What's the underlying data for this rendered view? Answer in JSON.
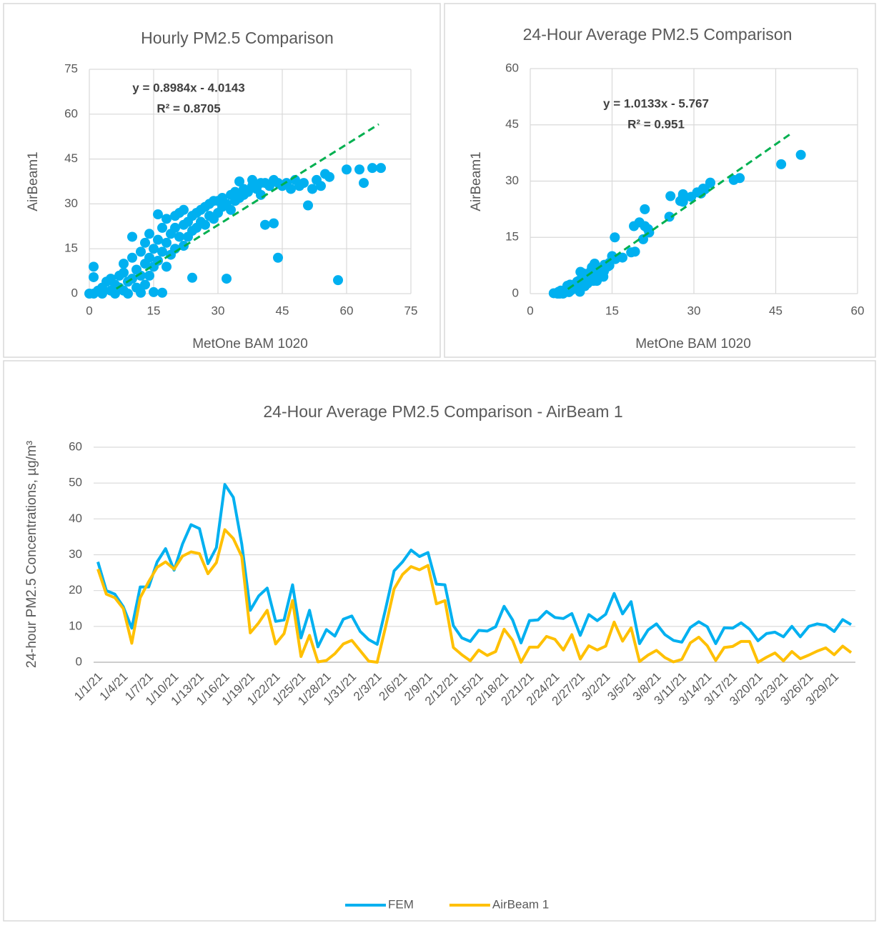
{
  "chart_data": [
    {
      "type": "scatter",
      "title": "Hourly PM2.5 Comparison",
      "x_label": "MetOne BAM 1020",
      "y_label": "AirBeam1",
      "color": "#00b0f0",
      "trend_color": "#00b050",
      "equation": "y = 0.8984x - 4.0143",
      "r_squared": "R² = 0.8705",
      "x": [
        0,
        1,
        1,
        1,
        2,
        3,
        3,
        4,
        5,
        5,
        6,
        6,
        7,
        7,
        8,
        8,
        8,
        9,
        9,
        10,
        10,
        10,
        11,
        11,
        12,
        12,
        12,
        13,
        13,
        13,
        14,
        14,
        14,
        15,
        15,
        15,
        16,
        16,
        16,
        17,
        17,
        17,
        18,
        18,
        18,
        19,
        19,
        20,
        20,
        20,
        21,
        21,
        22,
        22,
        22,
        23,
        23,
        24,
        24,
        24,
        25,
        25,
        26,
        26,
        27,
        27,
        28,
        28,
        29,
        29,
        30,
        30,
        31,
        31,
        32,
        32,
        33,
        33,
        34,
        34,
        35,
        35,
        36,
        36,
        37,
        38,
        38,
        39,
        40,
        40,
        41,
        41,
        42,
        43,
        43,
        44,
        44,
        45,
        46,
        47,
        48,
        49,
        50,
        51,
        52,
        53,
        54,
        55,
        56,
        58,
        60,
        63,
        64,
        66,
        68
      ],
      "values": [
        0,
        0,
        9,
        5.5,
        1,
        2,
        0,
        4,
        1,
        5,
        3,
        0,
        6,
        2,
        7,
        1,
        10,
        4,
        0,
        12,
        5,
        19,
        8,
        2,
        14,
        6,
        0.3,
        10,
        17,
        3,
        12,
        20,
        6,
        15,
        0.5,
        9,
        18,
        26.5,
        11,
        14,
        22,
        0.3,
        17,
        25,
        9,
        20,
        13,
        22,
        26,
        15,
        19,
        27,
        23,
        16,
        28,
        24,
        19,
        26,
        5.3,
        21,
        27,
        22,
        28,
        24,
        29,
        23,
        30,
        26,
        31,
        25,
        31,
        27,
        32,
        29,
        5,
        30,
        33,
        28,
        31,
        34,
        37.5,
        32,
        33,
        35,
        34,
        36,
        38,
        35,
        37,
        33,
        23,
        37,
        36,
        23.5,
        38,
        12,
        37,
        36,
        37,
        35,
        38,
        36,
        37,
        29.5,
        35,
        38,
        36,
        40,
        39,
        4.5,
        41.5,
        41.5,
        37,
        42,
        42
      ],
      "trendline": {
        "x": [
          6.3,
          67.5
        ],
        "y": [
          1.65,
          56.63
        ]
      },
      "xlim": [
        0,
        75
      ],
      "ylim": [
        0,
        75
      ],
      "xticks": [
        0,
        15,
        30,
        45,
        60,
        75
      ],
      "yticks": [
        0,
        15,
        30,
        45,
        60,
        75
      ],
      "grid": true
    },
    {
      "type": "scatter",
      "title": "24-Hour Average PM2.5 Comparison",
      "x_label": "MetOne BAM 1020",
      "y_label": "AirBeam1",
      "color": "#00b0f0",
      "trend_color": "#00b050",
      "equation": "y = 1.0133x - 5.767",
      "r_squared": "R² = 0.951",
      "x": [
        28,
        20,
        19,
        15.5,
        9.5,
        21,
        21,
        28,
        31.7,
        25.7,
        33,
        38.4,
        37.3,
        27.5,
        32,
        49.6,
        46,
        33,
        14.5,
        18.5,
        20.7,
        11.4,
        11.8,
        21.6,
        6.8,
        14.5,
        4.3,
        9.1,
        7.3,
        12,
        12.9,
        8.6,
        6.3,
        5,
        15,
        25.5,
        28,
        31.3,
        29.5,
        30.6,
        21.8,
        21.6,
        10.2,
        6.8,
        5.8,
        8.9,
        8.7,
        9.9,
        15.6,
        11.8,
        5.4,
        11.6,
        11.8,
        14.2,
        12.5,
        12.2,
        13.6,
        7.5,
        13.3,
        11.6,
        13.4,
        19.2,
        13.5,
        16.9,
        5.2,
        9,
        10.7,
        7.7,
        6.1,
        5.6,
        9.7,
        11.3,
        9.9,
        5.2,
        9.6,
        9.5,
        11,
        9.2,
        6,
        8,
        8.4,
        7.1,
        10,
        7.1,
        10,
        10.7,
        10.3,
        8.6,
        11.9,
        10.5
      ],
      "values": [
        26,
        19,
        18,
        15,
        5.3,
        18,
        22.5,
        26.5,
        28,
        26,
        29.6,
        30.8,
        30.3,
        24.7,
        27.8,
        37,
        34.5,
        29.5,
        8.2,
        11,
        14.5,
        5.1,
        8,
        17.2,
        1.6,
        7.5,
        0.1,
        0.5,
        2.4,
        5.1,
        6.1,
        3.2,
        0.3,
        0,
        10,
        20.5,
        24.5,
        26.7,
        25.8,
        27,
        16.3,
        17.2,
        4.1,
        2.1,
        0.4,
        3.4,
        1.9,
        3,
        9.2,
        6.1,
        0,
        4.2,
        4.2,
        7.2,
        6.4,
        3.4,
        7.7,
        0.9,
        4.6,
        3.4,
        4.5,
        11.2,
        5.9,
        9.6,
        0.2,
        2,
        3.3,
        1.3,
        0.1,
        0.8,
        5.4,
        7,
        4.6,
        0.5,
        4.1,
        4.4,
        5.8,
        5.8,
        0,
        1.4,
        2.6,
        0.4,
        3,
        1,
        2,
        3.1,
        4,
        2.1,
        4.5,
        2.7
      ],
      "trendline": {
        "x": [
          6.9,
          48
        ],
        "y": [
          1.22,
          42.87
        ]
      },
      "xlim": [
        0,
        60
      ],
      "ylim": [
        0,
        60
      ],
      "xticks": [
        0,
        15,
        30,
        45,
        60
      ],
      "yticks": [
        0,
        15,
        30,
        45,
        60
      ],
      "grid": true
    },
    {
      "type": "line",
      "title": "24-Hour Average PM2.5 Comparison - AirBeam 1",
      "y_label": "24-hour PM2.5 Concentrations, µg/m³",
      "categories": [
        "1/1/21",
        null,
        null,
        "1/4/21",
        null,
        null,
        "1/7/21",
        null,
        null,
        "1/10/21",
        null,
        null,
        "1/13/21",
        null,
        null,
        "1/16/21",
        null,
        null,
        "1/19/21",
        null,
        null,
        "1/22/21",
        null,
        null,
        "1/25/21",
        null,
        null,
        "1/28/21",
        null,
        null,
        "1/31/21",
        null,
        null,
        "2/3/21",
        null,
        null,
        "2/6/21",
        null,
        null,
        "2/9/21",
        null,
        null,
        "2/12/21",
        null,
        null,
        "2/15/21",
        null,
        null,
        "2/18/21",
        null,
        null,
        "2/21/21",
        null,
        null,
        "2/24/21",
        null,
        null,
        "2/27/21",
        null,
        null,
        "3/2/21",
        null,
        null,
        "3/5/21",
        null,
        null,
        "3/8/21",
        null,
        null,
        "3/11/21",
        null,
        null,
        "3/14/21",
        null,
        null,
        "3/17/21",
        null,
        null,
        "3/20/21",
        null,
        null,
        "3/23/21",
        null,
        null,
        "3/26/21",
        null,
        null,
        "3/29/21",
        null,
        null
      ],
      "series": [
        {
          "name": "FEM",
          "color": "#00b0f0",
          "values": [
            28,
            20,
            19,
            15.5,
            9.5,
            21,
            21,
            28,
            31.7,
            25.7,
            33,
            38.4,
            37.3,
            27.5,
            32,
            49.6,
            46,
            33,
            14.5,
            18.5,
            20.7,
            11.4,
            11.8,
            21.6,
            6.8,
            14.5,
            4.3,
            9.1,
            7.3,
            12,
            12.9,
            8.6,
            6.3,
            5,
            15,
            25.5,
            28,
            31.3,
            29.5,
            30.6,
            21.8,
            21.6,
            10.2,
            6.8,
            5.8,
            8.9,
            8.7,
            9.9,
            15.6,
            11.8,
            5.4,
            11.6,
            11.8,
            14.2,
            12.5,
            12.2,
            13.6,
            7.5,
            13.3,
            11.6,
            13.4,
            19.2,
            13.5,
            16.9,
            5.2,
            9,
            10.7,
            7.7,
            6.1,
            5.6,
            9.7,
            11.3,
            9.9,
            5.2,
            9.6,
            9.5,
            11,
            9.2,
            6,
            8,
            8.4,
            7.1,
            10,
            7.1,
            10,
            10.7,
            10.3,
            8.6,
            11.9,
            10.5
          ]
        },
        {
          "name": "AirBeam 1",
          "color": "#ffc000",
          "values": [
            26,
            19,
            18,
            15,
            5.3,
            18,
            22.5,
            26.5,
            28,
            26,
            29.6,
            30.8,
            30.3,
            24.7,
            27.8,
            37,
            34.5,
            29.5,
            8.2,
            11,
            14.5,
            5.1,
            8,
            17.2,
            1.6,
            7.5,
            0.1,
            0.5,
            2.4,
            5.1,
            6.1,
            3.2,
            0.3,
            0,
            10,
            20.5,
            24.5,
            26.7,
            25.8,
            27,
            16.3,
            17.2,
            4.1,
            2.1,
            0.4,
            3.4,
            1.9,
            3,
            9.2,
            6.1,
            0,
            4.2,
            4.2,
            7.2,
            6.4,
            3.4,
            7.7,
            0.9,
            4.6,
            3.4,
            4.5,
            11.2,
            5.9,
            9.6,
            0.2,
            2,
            3.3,
            1.3,
            0.1,
            0.8,
            5.4,
            7,
            4.6,
            0.5,
            4.1,
            4.4,
            5.8,
            5.8,
            0,
            1.4,
            2.6,
            0.4,
            3,
            1,
            2,
            3.1,
            4,
            2.1,
            4.5,
            2.7
          ]
        }
      ],
      "ylim": [
        0,
        60
      ],
      "yticks": [
        0,
        10,
        20,
        30,
        40,
        50,
        60
      ],
      "grid": true,
      "legend": "bottom"
    }
  ]
}
